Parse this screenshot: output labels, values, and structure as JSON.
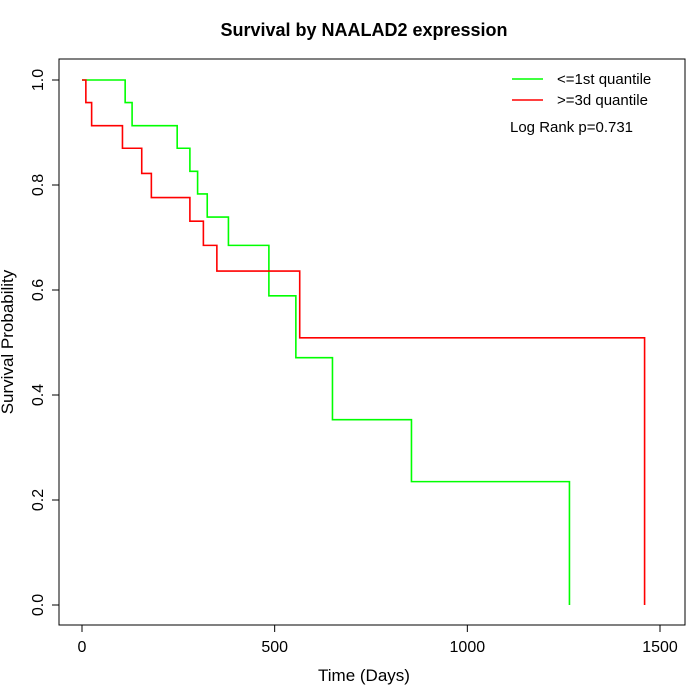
{
  "chart_data": {
    "type": "line",
    "title": "Survival by NAALAD2 expression",
    "xlabel": "Time (Days)",
    "ylabel": "Survival Probability",
    "xlim": [
      0,
      1500
    ],
    "ylim": [
      0,
      1
    ],
    "x_ticks": [
      0,
      500,
      1000,
      1500
    ],
    "y_ticks": [
      "0.0",
      "0.2",
      "0.4",
      "0.6",
      "0.8",
      "1.0"
    ],
    "grid": false,
    "legend_position": "top-right",
    "annotation": "Log Rank p=0.731",
    "series": [
      {
        "name": "<=1st quantile",
        "color": "#00ff00",
        "step": true,
        "points": [
          [
            0,
            1.0
          ],
          [
            112,
            0.957
          ],
          [
            130,
            0.913
          ],
          [
            247,
            0.87
          ],
          [
            280,
            0.826
          ],
          [
            300,
            0.783
          ],
          [
            325,
            0.739
          ],
          [
            380,
            0.685
          ],
          [
            485,
            0.589
          ],
          [
            555,
            0.471
          ],
          [
            650,
            0.353
          ],
          [
            855,
            0.235
          ],
          [
            1265,
            0.0
          ]
        ]
      },
      {
        "name": ">=3d quantile",
        "color": "#ff0000",
        "step": true,
        "points": [
          [
            0,
            1.0
          ],
          [
            10,
            0.957
          ],
          [
            25,
            0.913
          ],
          [
            105,
            0.87
          ],
          [
            155,
            0.822
          ],
          [
            180,
            0.776
          ],
          [
            280,
            0.731
          ],
          [
            315,
            0.685
          ],
          [
            350,
            0.636
          ],
          [
            565,
            0.509
          ],
          [
            1460,
            0.0
          ]
        ]
      }
    ]
  }
}
